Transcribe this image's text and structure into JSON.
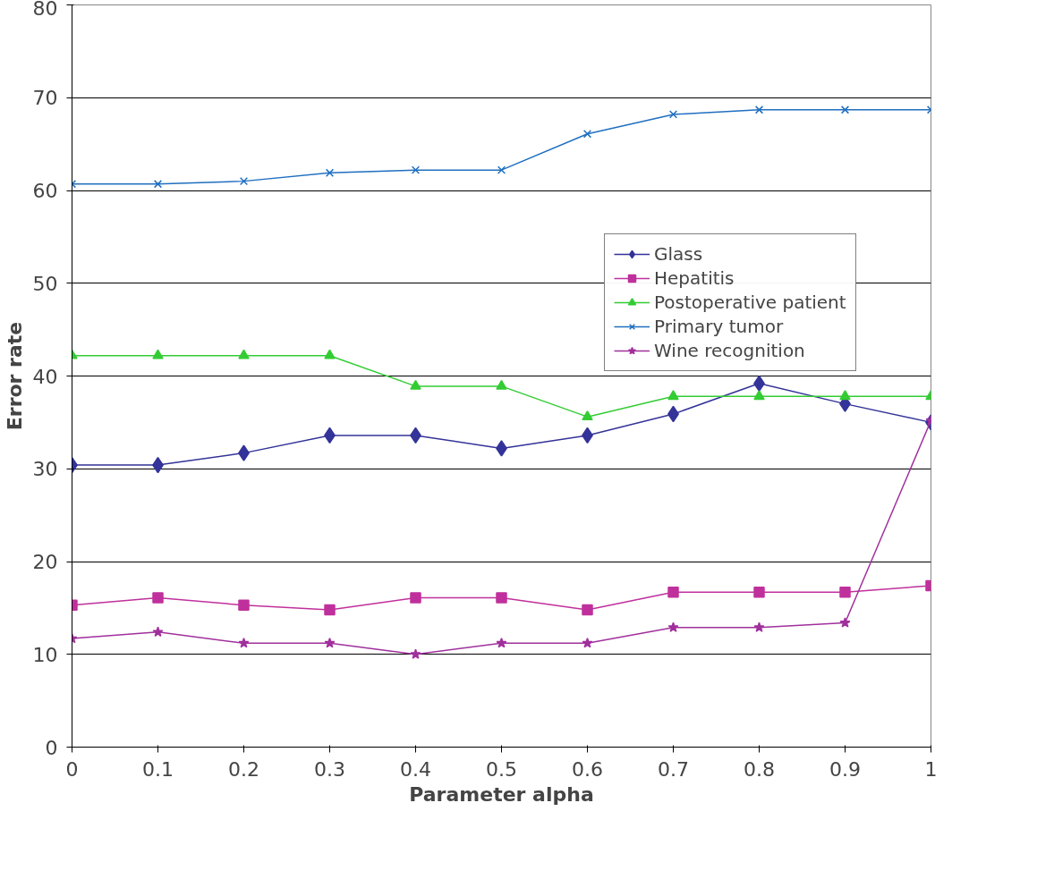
{
  "chart_data": {
    "type": "line",
    "xlabel": "Parameter alpha",
    "ylabel": "Error rate",
    "x": [
      0,
      0.1,
      0.2,
      0.3,
      0.4,
      0.5,
      0.6,
      0.7,
      0.8,
      0.9,
      1
    ],
    "xlim": [
      0,
      1
    ],
    "xticks": [
      0,
      0.1,
      0.2,
      0.3,
      0.4,
      0.5,
      0.6,
      0.7,
      0.8,
      0.9,
      1
    ],
    "ylim": [
      0,
      80
    ],
    "yticks": [
      0,
      10,
      20,
      30,
      40,
      50,
      60,
      70,
      80
    ],
    "grid": "y",
    "legend": "right",
    "line_style": "solid",
    "series": [
      {
        "name": "Glass",
        "color": "#333399",
        "marker": "diamond",
        "values": [
          30.4,
          30.4,
          31.7,
          33.6,
          33.6,
          32.2,
          33.6,
          35.9,
          39.2,
          37.0,
          35.0
        ]
      },
      {
        "name": "Hepatitis",
        "color": "#c0309c",
        "marker": "square",
        "values": [
          15.3,
          16.1,
          15.3,
          14.8,
          16.1,
          16.1,
          14.8,
          16.7,
          16.7,
          16.7,
          17.4
        ]
      },
      {
        "name": "Postoperative patient",
        "color": "#33cc33",
        "marker": "triangle",
        "values": [
          42.2,
          42.2,
          42.2,
          42.2,
          38.9,
          38.9,
          35.6,
          37.8,
          37.8,
          37.8,
          37.8
        ]
      },
      {
        "name": "Primary tumor",
        "color": "#1f6fc0",
        "marker": "cross",
        "values": [
          60.7,
          60.7,
          61.0,
          61.9,
          62.2,
          62.2,
          66.1,
          68.2,
          68.7,
          68.7,
          68.7
        ]
      },
      {
        "name": "Wine recognition",
        "color": "#a0309c",
        "marker": "star",
        "values": [
          11.7,
          12.4,
          11.2,
          11.2,
          10.0,
          11.2,
          11.2,
          12.9,
          12.9,
          13.4,
          35.2
        ]
      }
    ]
  }
}
